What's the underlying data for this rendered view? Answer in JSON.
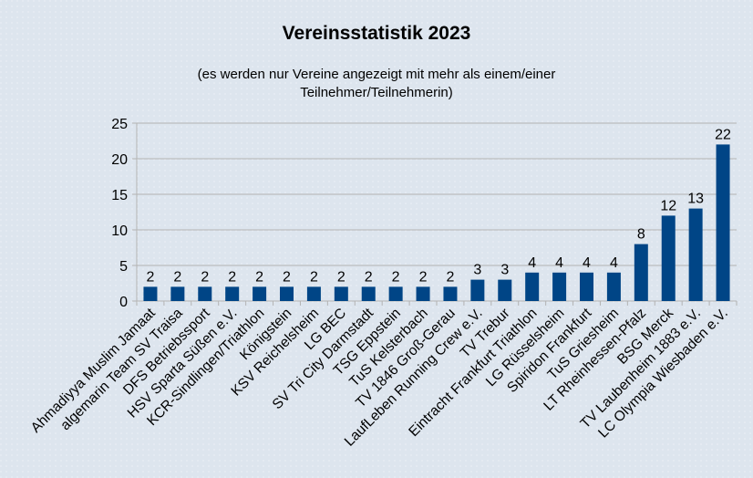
{
  "chart_data": {
    "type": "bar",
    "title": "Vereinsstatistik 2023",
    "subtitle_lines": [
      "(es werden nur Vereine angezeigt mit mehr als einem/einer",
      "Teilnehmer/Teilnehmerin)"
    ],
    "xlabel": "",
    "ylabel": "",
    "ylim": [
      0,
      25
    ],
    "yticks": [
      0,
      5,
      10,
      15,
      20,
      25
    ],
    "grid": true,
    "data_labels": true,
    "bar_color": "#004586",
    "categories": [
      "Ahmadiyya Muslim Jamaat",
      "algemarin Team SV Traisa",
      "DFS Betriebssport",
      "HSV Sparta Süßen e.V.",
      "KCR-Sindlingen/Triathlon",
      "Königstein",
      "KSV Reichelsheim",
      "LG BEC",
      "SV Tri City Darmstadt",
      "TSG Eppstein",
      "TuS Kelsterbach",
      "TV 1846 Groß-Gerau",
      "LaufLeben Running Crew e.V.",
      "TV Trebur",
      "Eintracht Frankfurt Triathlon",
      "LG Rüsselsheim",
      "Spiridon Frankfurt",
      "TuS Griesheim",
      "LT Rheinhessen-Pfalz",
      "BSG Merck",
      "TV Laubenheim 1883 e.V.",
      "LC Olympia Wiesbaden e.V."
    ],
    "values": [
      2,
      2,
      2,
      2,
      2,
      2,
      2,
      2,
      2,
      2,
      2,
      2,
      3,
      3,
      4,
      4,
      4,
      4,
      8,
      12,
      13,
      22
    ]
  }
}
